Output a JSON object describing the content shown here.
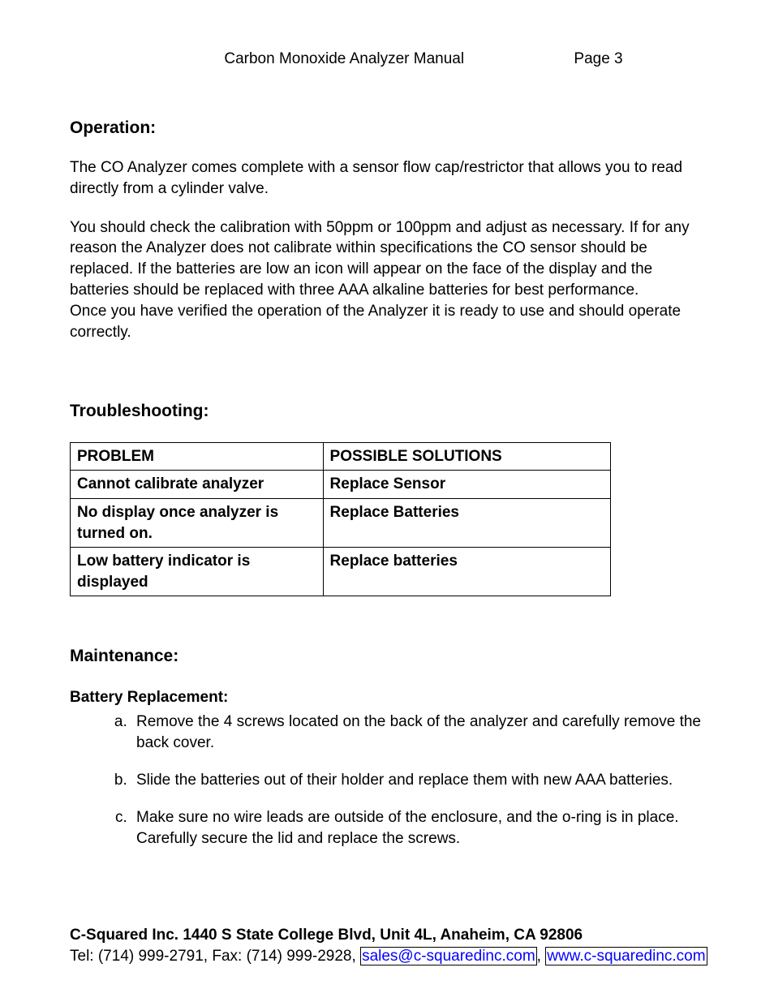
{
  "header": {
    "title": "Carbon Monoxide Analyzer Manual",
    "page": "Page 3"
  },
  "operation": {
    "heading": "Operation:",
    "para1": "The CO Analyzer comes complete with a sensor flow cap/restrictor that allows you to read directly from a cylinder valve.",
    "para2": "You should check the calibration with 50ppm or 100ppm and adjust as necessary. If for any reason the Analyzer does not calibrate within specifications the CO sensor should be replaced. If the batteries are low an icon will appear on the face of the display and the batteries should be replaced with three AAA alkaline batteries for best performance.",
    "para3": "Once you have verified the operation of the Analyzer it is ready to use and should operate correctly."
  },
  "troubleshooting": {
    "heading": "Troubleshooting:",
    "columns": [
      "PROBLEM",
      "POSSIBLE SOLUTIONS"
    ],
    "rows": [
      [
        "Cannot calibrate analyzer",
        "Replace Sensor"
      ],
      [
        "No display once analyzer is turned on.",
        "Replace Batteries"
      ],
      [
        "Low battery indicator is displayed",
        "Replace batteries"
      ]
    ]
  },
  "maintenance": {
    "heading": "Maintenance:",
    "subheading": "Battery Replacement:",
    "steps": [
      "Remove the 4 screws located on the back of the analyzer and carefully remove the back cover.",
      "Slide the batteries out of their holder and replace them with new AAA batteries.",
      "Make sure no wire leads are outside of the enclosure, and the o-ring is in place. Carefully secure the lid and replace the screws."
    ]
  },
  "footer": {
    "address": "C-Squared Inc. 1440 S State College Blvd, Unit 4L, Anaheim, CA  92806",
    "contact_prefix": "Tel: (714) 999-2791, Fax: (714) 999-2928, ",
    "email": "sales@c-squaredinc.com",
    "separator": ", ",
    "website": "www.c-squaredinc.com"
  }
}
